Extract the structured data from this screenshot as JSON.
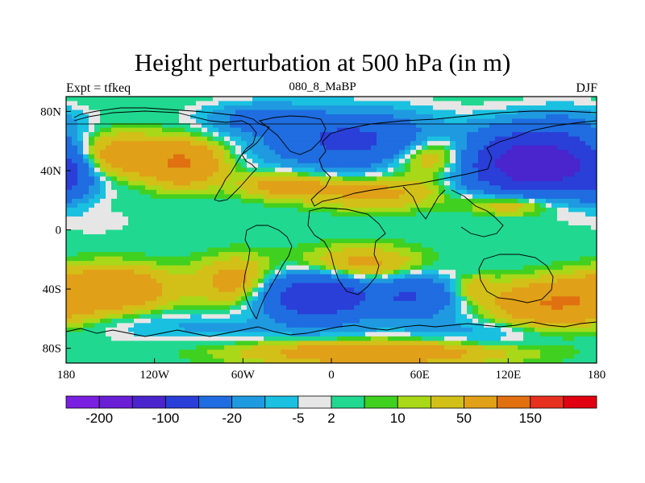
{
  "title": "Height perturbation at 500 hPa (in m)",
  "left_string": "Expt = tfkeq",
  "center_string": "080_8_MaBP",
  "right_string": "DJF",
  "colors": {
    "palette": [
      "#7a20e0",
      "#6a1ed6",
      "#4a24cc",
      "#2a3ed8",
      "#1f6de0",
      "#1f9ae0",
      "#1ac0e0",
      "#e6e6e6",
      "#20d890",
      "#40d020",
      "#a8d818",
      "#d2c018",
      "#e0a018",
      "#e07010",
      "#e83020",
      "#e00010"
    ]
  },
  "chart_data": {
    "type": "heatmap",
    "title": "Height perturbation at 500 hPa (in m)",
    "xlabel": "",
    "ylabel": "",
    "xlim": [
      -180,
      180
    ],
    "ylim": [
      -90,
      90
    ],
    "x_ticks": [
      {
        "value": -180,
        "label": "180"
      },
      {
        "value": -120,
        "label": "120W"
      },
      {
        "value": -60,
        "label": "60W"
      },
      {
        "value": 0,
        "label": "0"
      },
      {
        "value": 60,
        "label": "60E"
      },
      {
        "value": 120,
        "label": "120E"
      },
      {
        "value": 180,
        "label": "180"
      }
    ],
    "y_ticks": [
      {
        "value": 80,
        "label": "80N"
      },
      {
        "value": 40,
        "label": "40N"
      },
      {
        "value": 0,
        "label": "0"
      },
      {
        "value": -40,
        "label": "40S"
      },
      {
        "value": -80,
        "label": "80S"
      }
    ],
    "colorbar": {
      "levels": [
        -200,
        -150,
        -100,
        -50,
        -20,
        -10,
        -5,
        -2,
        2,
        5,
        10,
        20,
        50,
        100,
        150
      ],
      "labels": [
        {
          "after_box": 1,
          "text": "-200"
        },
        {
          "after_box": 3,
          "text": "-100"
        },
        {
          "after_box": 5,
          "text": "-20"
        },
        {
          "after_box": 7,
          "text": "-5"
        },
        {
          "after_box": 8,
          "text": "2"
        },
        {
          "after_box": 10,
          "text": "10"
        },
        {
          "after_box": 12,
          "text": "50"
        },
        {
          "after_box": 14,
          "text": "150"
        }
      ]
    },
    "blobs": [
      {
        "lon": -150,
        "lat": 50,
        "rlon": 35,
        "rlat": 14,
        "v": 40
      },
      {
        "lon": -100,
        "lat": 45,
        "rlon": 25,
        "rlat": 14,
        "v": 50
      },
      {
        "lon": -50,
        "lat": 75,
        "rlon": 35,
        "rlat": 10,
        "v": -25
      },
      {
        "lon": 15,
        "lat": 60,
        "rlon": 55,
        "rlat": 18,
        "v": -60
      },
      {
        "lon": -30,
        "lat": 30,
        "rlon": 30,
        "rlat": 8,
        "v": 30
      },
      {
        "lon": 30,
        "lat": 25,
        "rlon": 45,
        "rlat": 10,
        "v": 25
      },
      {
        "lon": 70,
        "lat": 50,
        "rlon": 30,
        "rlat": 14,
        "v": 40
      },
      {
        "lon": 140,
        "lat": 45,
        "rlon": 45,
        "rlat": 20,
        "v": -150
      },
      {
        "lon": 160,
        "lat": 75,
        "rlon": 30,
        "rlat": 10,
        "v": -10
      },
      {
        "lon": 125,
        "lat": 18,
        "rlon": 30,
        "rlat": 8,
        "v": 30
      },
      {
        "lon": -178,
        "lat": 35,
        "rlon": 14,
        "rlat": 14,
        "v": -30
      },
      {
        "lon": -160,
        "lat": 5,
        "rlon": 25,
        "rlat": 8,
        "v": -4
      },
      {
        "lon": -150,
        "lat": -40,
        "rlon": 40,
        "rlat": 14,
        "v": 45
      },
      {
        "lon": -65,
        "lat": -35,
        "rlon": 25,
        "rlat": 15,
        "v": 30
      },
      {
        "lon": -10,
        "lat": -45,
        "rlon": 35,
        "rlat": 15,
        "v": -90
      },
      {
        "lon": 20,
        "lat": -25,
        "rlon": 40,
        "rlat": 12,
        "v": 30
      },
      {
        "lon": 55,
        "lat": -45,
        "rlon": 30,
        "rlat": 15,
        "v": -50
      },
      {
        "lon": 95,
        "lat": -40,
        "rlon": 15,
        "rlat": 8,
        "v": 20
      },
      {
        "lon": 150,
        "lat": -50,
        "rlon": 40,
        "rlat": 14,
        "v": 50
      },
      {
        "lon": -100,
        "lat": -65,
        "rlon": 60,
        "rlat": 10,
        "v": -10
      },
      {
        "lon": 30,
        "lat": -83,
        "rlon": 80,
        "rlat": 8,
        "v": 40
      },
      {
        "lon": -10,
        "lat": -68,
        "rlon": 60,
        "rlat": 7,
        "v": -8
      },
      {
        "lon": 100,
        "lat": -70,
        "rlon": 40,
        "rlat": 10,
        "v": -12
      }
    ]
  }
}
